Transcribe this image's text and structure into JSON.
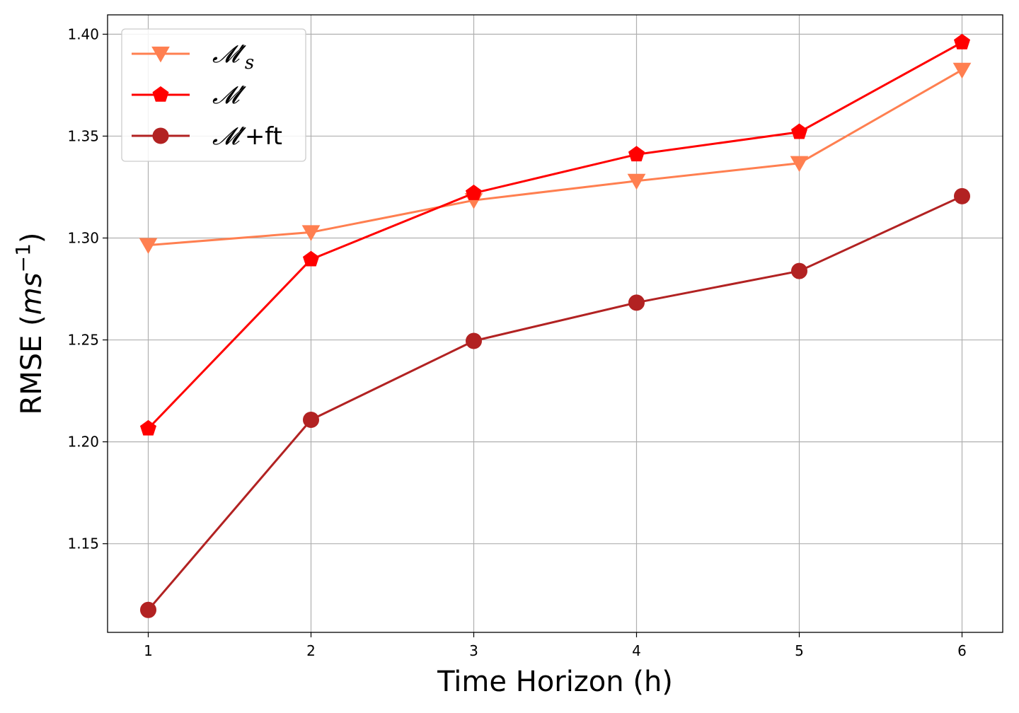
{
  "chart_data": {
    "type": "line",
    "x": [
      1,
      2,
      3,
      4,
      5,
      6
    ],
    "xticks": [
      "1",
      "2",
      "3",
      "4",
      "5",
      "6"
    ],
    "yticks": [
      "1.15",
      "1.20",
      "1.25",
      "1.30",
      "1.35",
      "1.40"
    ],
    "ytick_values": [
      1.15,
      1.2,
      1.25,
      1.3,
      1.35,
      1.4
    ],
    "xlim": [
      0.75,
      6.25
    ],
    "ylim": [
      1.1065,
      1.4095
    ],
    "xlabel": "Time Horizon (h)",
    "ylabel": "RMSE",
    "ylabel_unit_parts": [
      "m",
      "s",
      "−1"
    ],
    "grid": true,
    "legend_position": "upper-left",
    "series": [
      {
        "name": "𝓜′s",
        "legend_main": "𝓜′",
        "legend_sub": "s",
        "legend_suffix": "",
        "color": "#ff7f50",
        "marker": "triangle-down",
        "values": [
          1.2965,
          1.3028,
          1.3185,
          1.328,
          1.3367,
          1.3825
        ]
      },
      {
        "name": "𝓜′",
        "legend_main": "𝓜′",
        "legend_sub": "",
        "legend_suffix": "",
        "color": "#ff0000",
        "marker": "pentagon",
        "values": [
          1.2065,
          1.2895,
          1.322,
          1.341,
          1.352,
          1.396
        ]
      },
      {
        "name": "𝓜′+ft",
        "legend_main": "𝓜′",
        "legend_sub": "",
        "legend_suffix": "+ft",
        "color": "#b22222",
        "marker": "circle",
        "values": [
          1.1175,
          1.2108,
          1.2495,
          1.2683,
          1.2838,
          1.3205
        ]
      }
    ]
  }
}
